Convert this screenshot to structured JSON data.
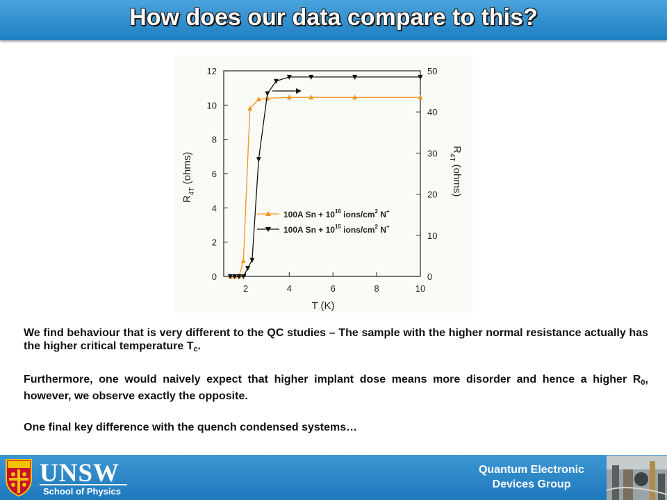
{
  "title": "How does our data compare to this?",
  "chart_data": {
    "type": "line",
    "xlabel": "T (K)",
    "ylabel_left": "R 4T (ohms)",
    "ylabel_right": "R 4T (ohms)",
    "xlim": [
      1,
      10
    ],
    "ylim_left": [
      0,
      12
    ],
    "ylim_right": [
      0,
      50
    ],
    "x_ticks": [
      "2",
      "4",
      "6",
      "8",
      "10"
    ],
    "y_ticks_left": [
      "0",
      "2",
      "4",
      "6",
      "8",
      "10",
      "12"
    ],
    "y_ticks_right": [
      "0",
      "10",
      "20",
      "30",
      "40",
      "50"
    ],
    "legend_placement": "center-right",
    "grid": false,
    "series": [
      {
        "name": "100A Sn + 10^16 ions/cm^2 N^+",
        "legend_main": "100A Sn + 10",
        "legend_exp": "16",
        "legend_mid": " ions/cm",
        "legend_sq": "2",
        "legend_end": " N",
        "legend_plus": "+",
        "axis": "left",
        "color": "#f7941d",
        "marker": "triangle-up",
        "x": [
          1.3,
          1.5,
          1.7,
          1.9,
          2.2,
          2.6,
          3.0,
          4.0,
          5.0,
          7.0,
          10.0
        ],
        "y": [
          0.0,
          0.0,
          0.0,
          0.9,
          9.8,
          10.35,
          10.4,
          10.45,
          10.45,
          10.45,
          10.45
        ]
      },
      {
        "name": "100A Sn + 10^15 ions/cm^2 N^+",
        "legend_main": "100A Sn + 10",
        "legend_exp": "15",
        "legend_mid": " ions/cm",
        "legend_sq": "2",
        "legend_end": " N",
        "legend_plus": "+",
        "axis": "right",
        "color": "#111111",
        "marker": "triangle-down",
        "x": [
          1.3,
          1.5,
          1.7,
          1.9,
          2.1,
          2.3,
          2.6,
          3.0,
          3.4,
          4.0,
          5.0,
          7.0,
          10.0
        ],
        "y": [
          0,
          0,
          0,
          0,
          2,
          4,
          28.5,
          44.5,
          47.5,
          48.5,
          48.5,
          48.5,
          48.5
        ]
      }
    ]
  },
  "paragraph1_main": "We find behaviour that is very different to the QC studies – The sample with the higher normal resistance actually has the higher critical temperature T",
  "paragraph1_sub": "c",
  "paragraph1_end": ".",
  "paragraph2_main": "Furthermore, one would naively expect that higher implant dose means more disorder and hence a higher R",
  "paragraph2_sub": "0",
  "paragraph2_end": ", however, we observe exactly the opposite.",
  "paragraph3": "One final key difference with the quench condensed systems…",
  "footer": {
    "logo_word": "UNSW",
    "logo_sub": "School of Physics",
    "group_line1": "Quantum Electronic",
    "group_line2": "Devices Group"
  },
  "colors": {
    "title_bar": "#2f8fd0",
    "footer_bar": "#2a86c8",
    "orange_series": "#f7941d",
    "black_series": "#111111"
  }
}
